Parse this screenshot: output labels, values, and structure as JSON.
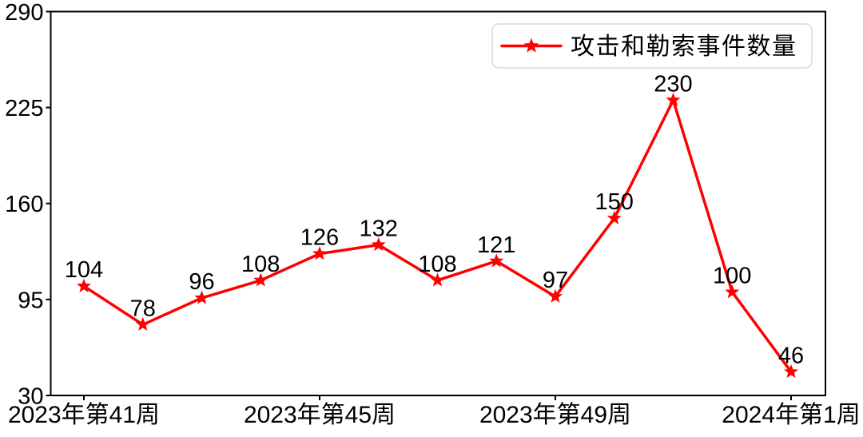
{
  "chart_data": {
    "type": "line",
    "title": "",
    "xlabel": "",
    "ylabel": "",
    "series": [
      {
        "name": "攻击和勒索事件数量",
        "values": [
          104,
          78,
          96,
          108,
          126,
          132,
          108,
          121,
          97,
          150,
          230,
          100,
          46
        ]
      }
    ],
    "point_labels": [
      "104",
      "78",
      "96",
      "108",
      "126",
      "132",
      "108",
      "121",
      "97",
      "150",
      "230",
      "100",
      "46"
    ],
    "x_ticks": [
      {
        "index": 0,
        "label": "2023年第41周"
      },
      {
        "index": 4,
        "label": "2023年第45周"
      },
      {
        "index": 8,
        "label": "2023年第49周"
      },
      {
        "index": 12,
        "label": "2024年第1周"
      }
    ],
    "y_ticks": [
      30,
      95,
      160,
      225,
      290
    ],
    "ylim": [
      30,
      290
    ],
    "grid": false,
    "marker": "star",
    "legend": {
      "position": "upper right",
      "label": "攻击和勒索事件数量"
    },
    "colors": {
      "line": "#ff0000",
      "marker": "#ff0000",
      "text": "#000000",
      "axis": "#000000",
      "legend_border": "#d9d9d9",
      "background": "#ffffff"
    }
  }
}
